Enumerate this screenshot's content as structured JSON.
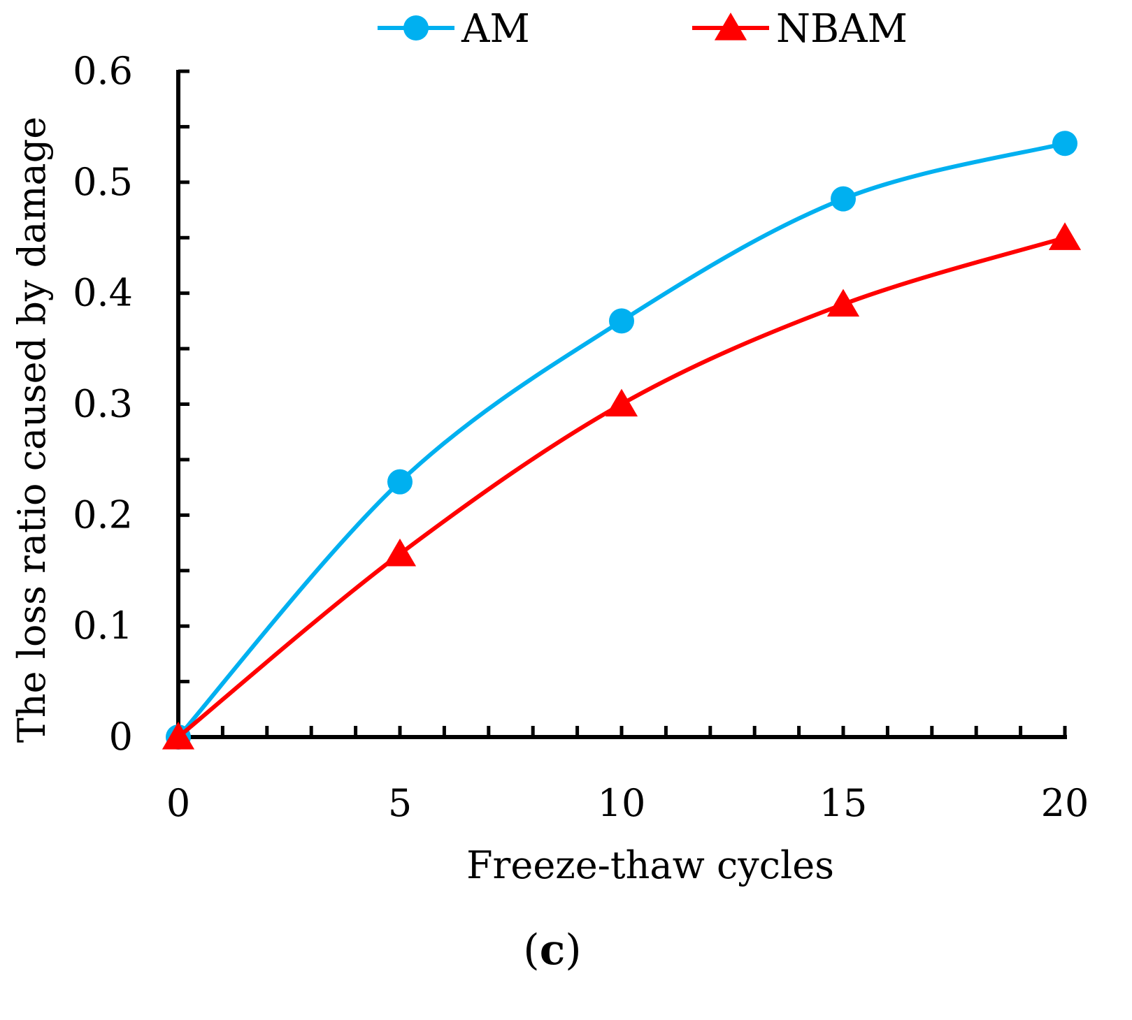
{
  "chart_data": {
    "type": "line",
    "title": "",
    "xlabel": "Freeze-thaw  cycles",
    "ylabel": "The loss  ratio caused  by damage",
    "x": [
      0,
      5,
      10,
      15,
      20
    ],
    "xlim": [
      0,
      20
    ],
    "ylim": [
      0,
      0.6
    ],
    "x_ticks": [
      0,
      5,
      10,
      15,
      20
    ],
    "x_tick_labels": [
      "0",
      "5",
      "10",
      "15",
      "20"
    ],
    "x_minor_step": 1,
    "y_ticks": [
      0,
      0.1,
      0.2,
      0.3,
      0.4,
      0.5,
      0.6
    ],
    "y_tick_labels": [
      "0",
      "0.1",
      "0.2",
      "0.3",
      "0.4",
      "0.5",
      "0.6"
    ],
    "y_minor_step": 0.05,
    "grid": false,
    "smooth": true,
    "legend_position": "top-center",
    "series": [
      {
        "name": "AM",
        "marker": "circle",
        "color": "#00B0F0",
        "values": [
          0,
          0.23,
          0.375,
          0.485,
          0.535
        ]
      },
      {
        "name": "NBAM",
        "marker": "triangle",
        "color": "#FF0000",
        "values": [
          0,
          0.165,
          0.3,
          0.39,
          0.45
        ]
      }
    ]
  },
  "panel_label": {
    "open": "(",
    "letter": "c",
    "close": ")"
  }
}
